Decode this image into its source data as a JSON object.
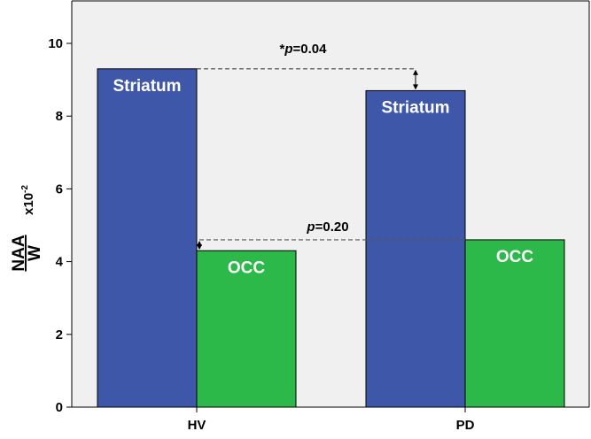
{
  "chart_data": {
    "type": "bar",
    "categories": [
      "HV",
      "PD"
    ],
    "series": [
      {
        "label": "Striatum",
        "values": [
          9.3,
          8.7
        ],
        "color": "#3f57a8"
      },
      {
        "label": "OCC",
        "values": [
          4.3,
          4.6
        ],
        "color": "#2db84a"
      }
    ],
    "ylim": [
      0,
      11
    ],
    "yticks": [
      "0",
      "2",
      "4",
      "6",
      "8",
      "10"
    ],
    "ylabel": {
      "numerator": "NAA",
      "denominator": "W",
      "scale_base": "x10",
      "scale_exp": "-2"
    },
    "background": "#f0f0f0",
    "grid": false,
    "annotations": [
      {
        "star": "*",
        "p": "p",
        "rest": "=0.04",
        "series": "Striatum"
      },
      {
        "star": "",
        "p": "p",
        "rest": "=0.20",
        "series": "OCC"
      }
    ]
  }
}
